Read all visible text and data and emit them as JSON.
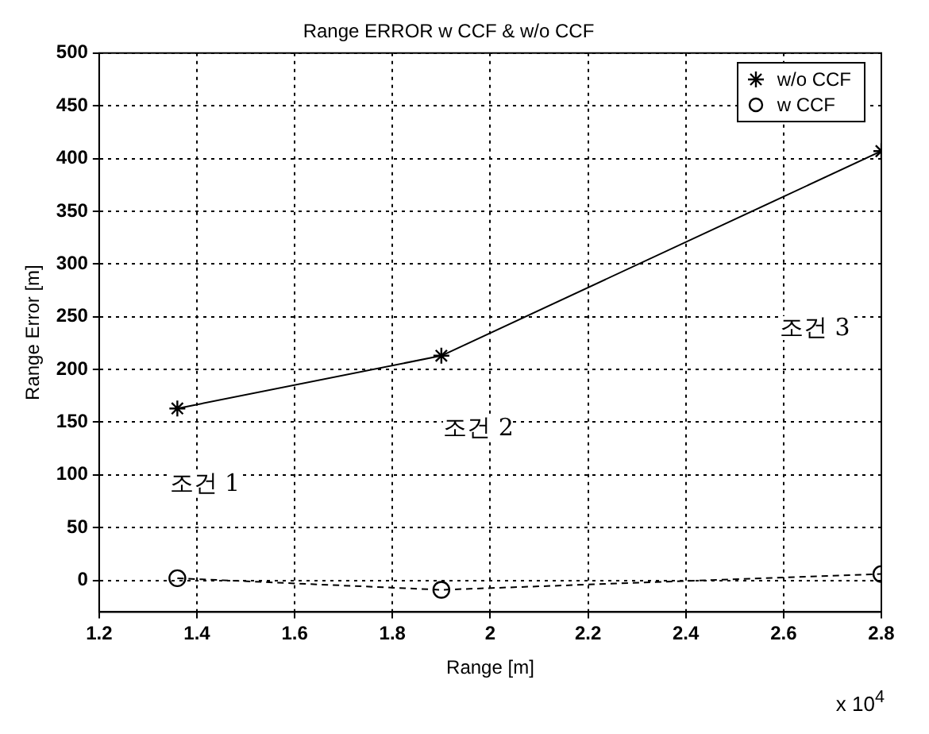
{
  "chart_data": {
    "type": "line",
    "title": "Range ERROR w CCF & w/o CCF",
    "xlabel": "Range [m]",
    "ylabel": "Range Error [m]",
    "x": [
      1.36,
      1.9,
      2.8
    ],
    "series": [
      {
        "name": "w/o CCF",
        "color": "#000000",
        "values": [
          163,
          213,
          407
        ],
        "marker": "cross",
        "line_style": "solid"
      },
      {
        "name": "w CCF",
        "color": "#000000",
        "values": [
          2,
          -9,
          6
        ],
        "marker": "circle",
        "line_style": "dashed"
      }
    ],
    "xlim": [
      1.2,
      2.8
    ],
    "xticks": [
      1.2,
      1.4,
      1.6,
      1.8,
      2,
      2.2,
      2.4,
      2.6,
      2.8
    ],
    "ylim": [
      -30,
      500
    ],
    "yticks": [
      0,
      50,
      100,
      150,
      200,
      250,
      300,
      350,
      400,
      450,
      500
    ],
    "grid": true,
    "legend": "top right",
    "annotations": [
      "x 10$^{4}$",
      "조건 1",
      "조건 2",
      "조건 3"
    ]
  }
}
